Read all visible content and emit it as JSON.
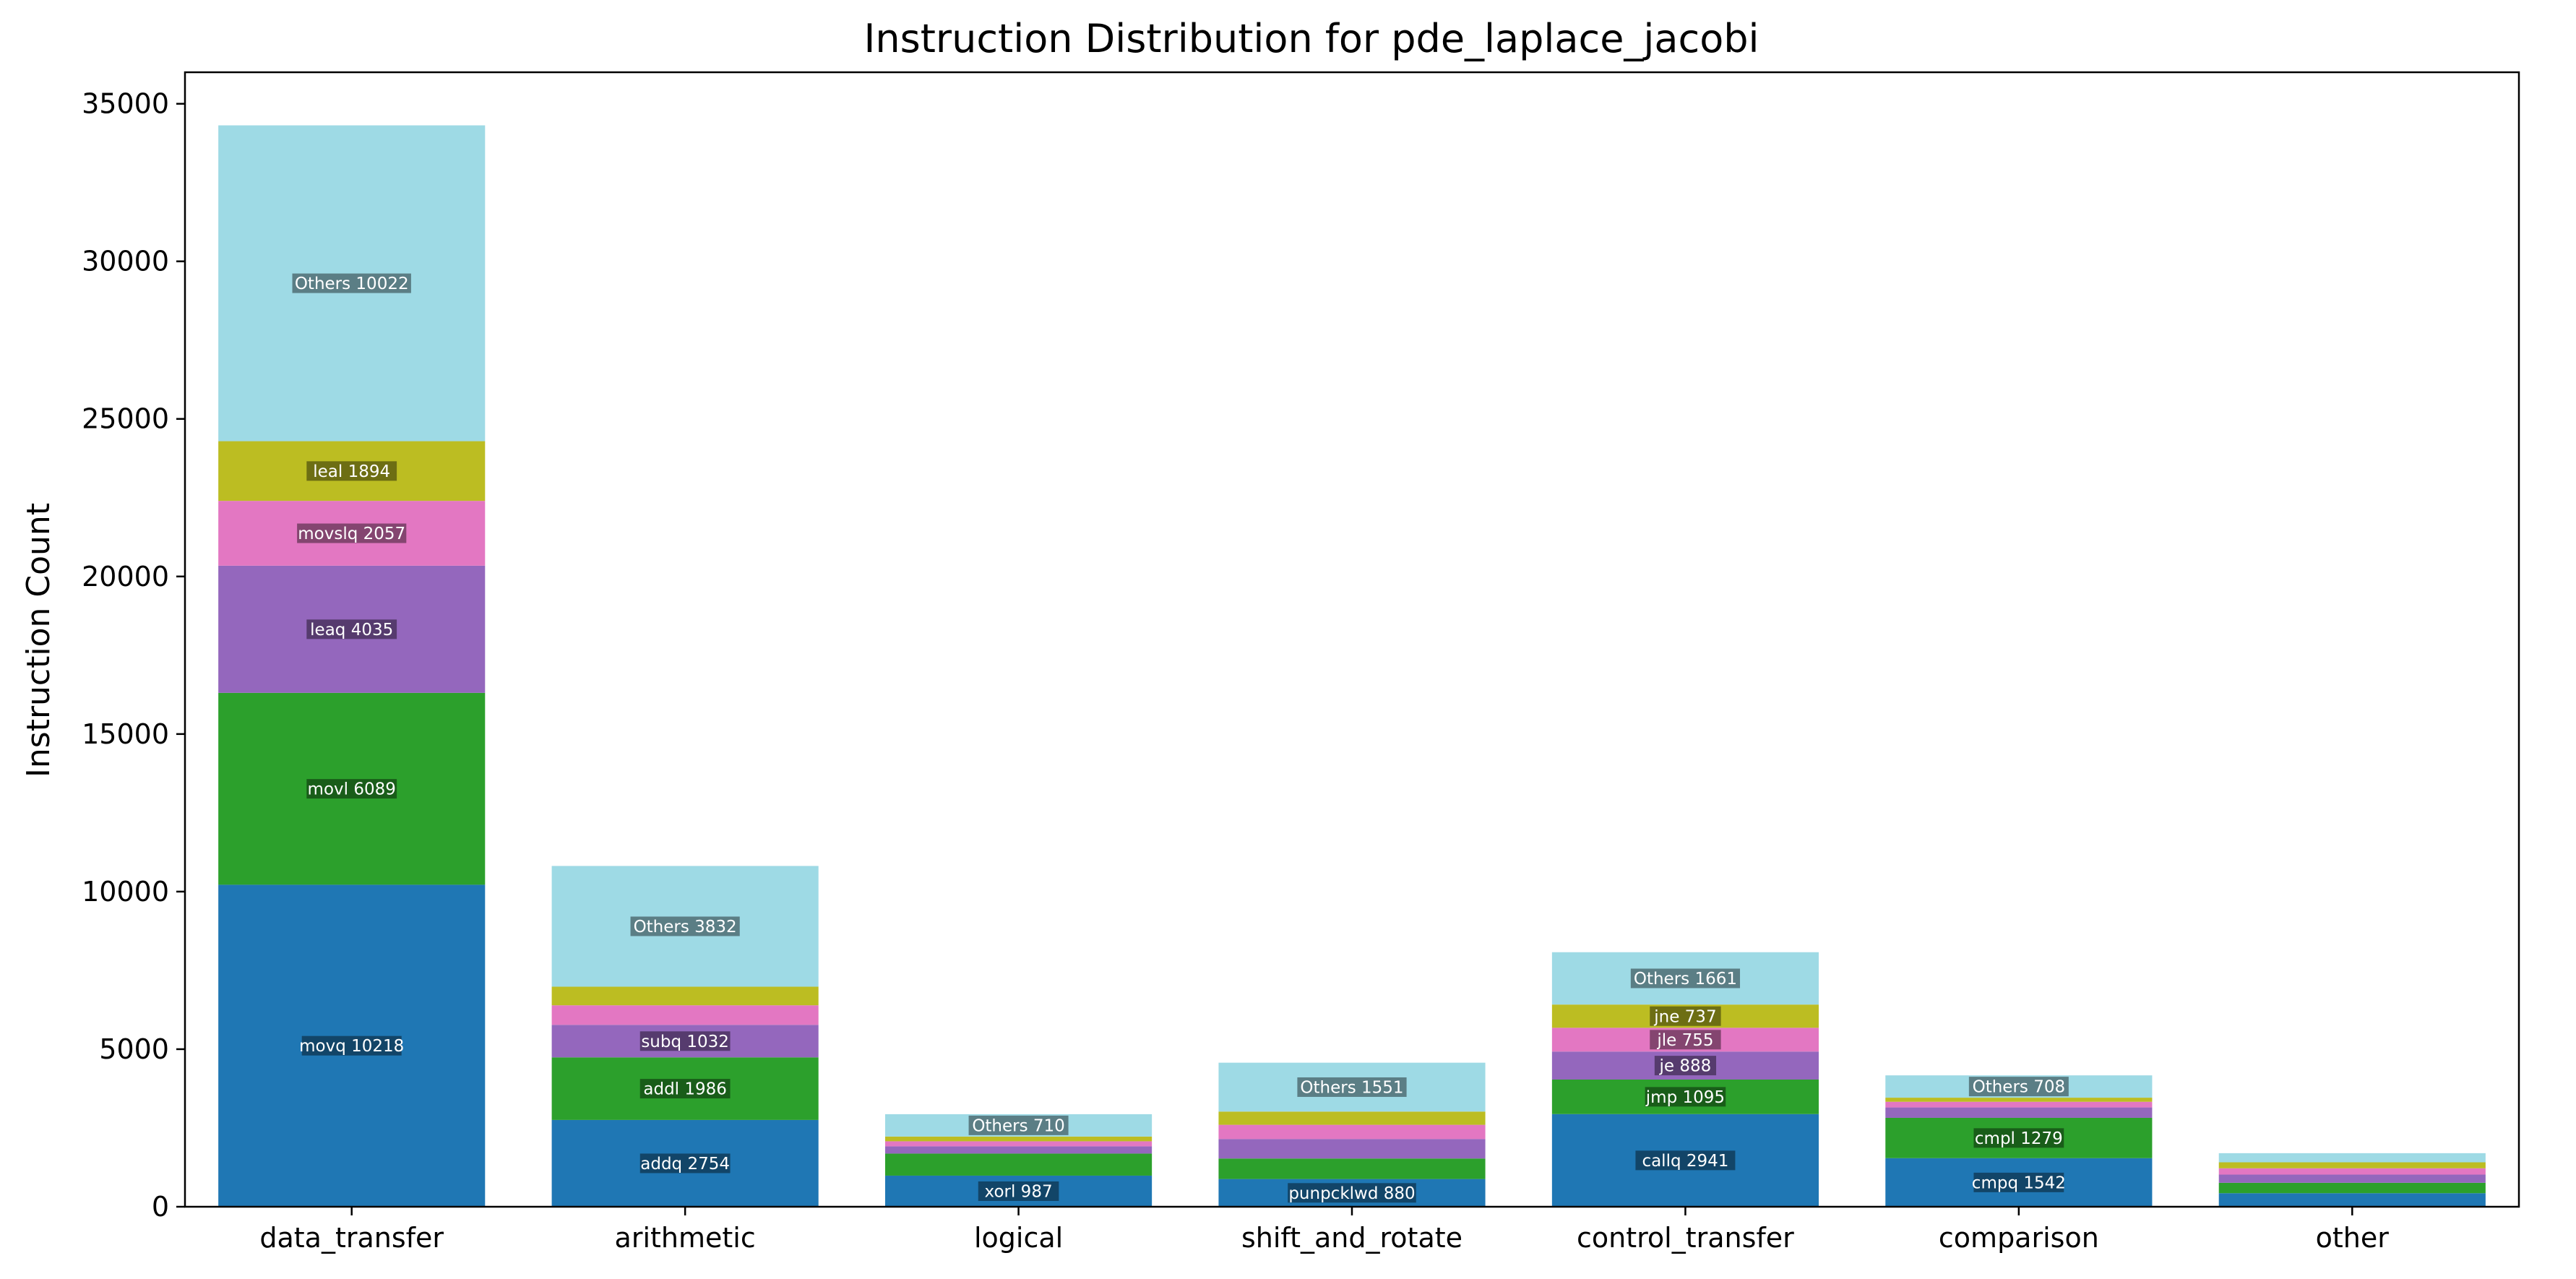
{
  "chart_data": {
    "type": "bar",
    "stacked": true,
    "title": "Instruction Distribution for pde_laplace_jacobi",
    "xlabel": "",
    "ylabel": "Instruction Count",
    "ylim": [
      0,
      36000
    ],
    "yticks": [
      0,
      5000,
      10000,
      15000,
      20000,
      25000,
      30000,
      35000
    ],
    "grid": false,
    "legend": "none",
    "layer_colors": [
      "#1f77b4",
      "#2ca02c",
      "#9467bd",
      "#e377c2",
      "#bcbd22",
      "#9edae5"
    ],
    "categories": [
      "data_transfer",
      "arithmetic",
      "logical",
      "shift_and_rotate",
      "control_transfer",
      "comparison",
      "other"
    ],
    "stacks": [
      {
        "category": "data_transfer",
        "segments": [
          {
            "label": "movq 10218",
            "value": 10218
          },
          {
            "label": "movl 6089",
            "value": 6089
          },
          {
            "label": "leaq 4035",
            "value": 4035
          },
          {
            "label": "movslq 2057",
            "value": 2057
          },
          {
            "label": "leal 1894",
            "value": 1894
          },
          {
            "label": "Others 10022",
            "value": 10022
          }
        ]
      },
      {
        "category": "arithmetic",
        "segments": [
          {
            "label": "addq 2754",
            "value": 2754
          },
          {
            "label": "addl 1986",
            "value": 1986
          },
          {
            "label": "subq 1032",
            "value": 1032
          },
          {
            "label": "",
            "value": 620
          },
          {
            "label": "",
            "value": 590
          },
          {
            "label": "Others 3832",
            "value": 3832
          }
        ]
      },
      {
        "category": "logical",
        "segments": [
          {
            "label": "xorl 987",
            "value": 987
          },
          {
            "label": "",
            "value": 700
          },
          {
            "label": "",
            "value": 230
          },
          {
            "label": "",
            "value": 160
          },
          {
            "label": "",
            "value": 150
          },
          {
            "label": "Others 710",
            "value": 710
          }
        ]
      },
      {
        "category": "shift_and_rotate",
        "segments": [
          {
            "label": "punpcklwd 880",
            "value": 880
          },
          {
            "label": "",
            "value": 650
          },
          {
            "label": "",
            "value": 620
          },
          {
            "label": "",
            "value": 450
          },
          {
            "label": "",
            "value": 420
          },
          {
            "label": "Others 1551",
            "value": 1551
          }
        ]
      },
      {
        "category": "control_transfer",
        "segments": [
          {
            "label": "callq 2941",
            "value": 2941
          },
          {
            "label": "jmp 1095",
            "value": 1095
          },
          {
            "label": "je 888",
            "value": 888
          },
          {
            "label": "jle 755",
            "value": 755
          },
          {
            "label": "jne 737",
            "value": 737
          },
          {
            "label": "Others 1661",
            "value": 1661
          }
        ]
      },
      {
        "category": "comparison",
        "segments": [
          {
            "label": "cmpq 1542",
            "value": 1542
          },
          {
            "label": "cmpl 1279",
            "value": 1279
          },
          {
            "label": "",
            "value": 330
          },
          {
            "label": "",
            "value": 180
          },
          {
            "label": "",
            "value": 130
          },
          {
            "label": "Others 708",
            "value": 708
          }
        ]
      },
      {
        "category": "other",
        "segments": [
          {
            "label": "",
            "value": 430
          },
          {
            "label": "",
            "value": 330
          },
          {
            "label": "",
            "value": 260
          },
          {
            "label": "",
            "value": 200
          },
          {
            "label": "",
            "value": 190
          },
          {
            "label": "",
            "value": 290
          }
        ]
      }
    ]
  }
}
